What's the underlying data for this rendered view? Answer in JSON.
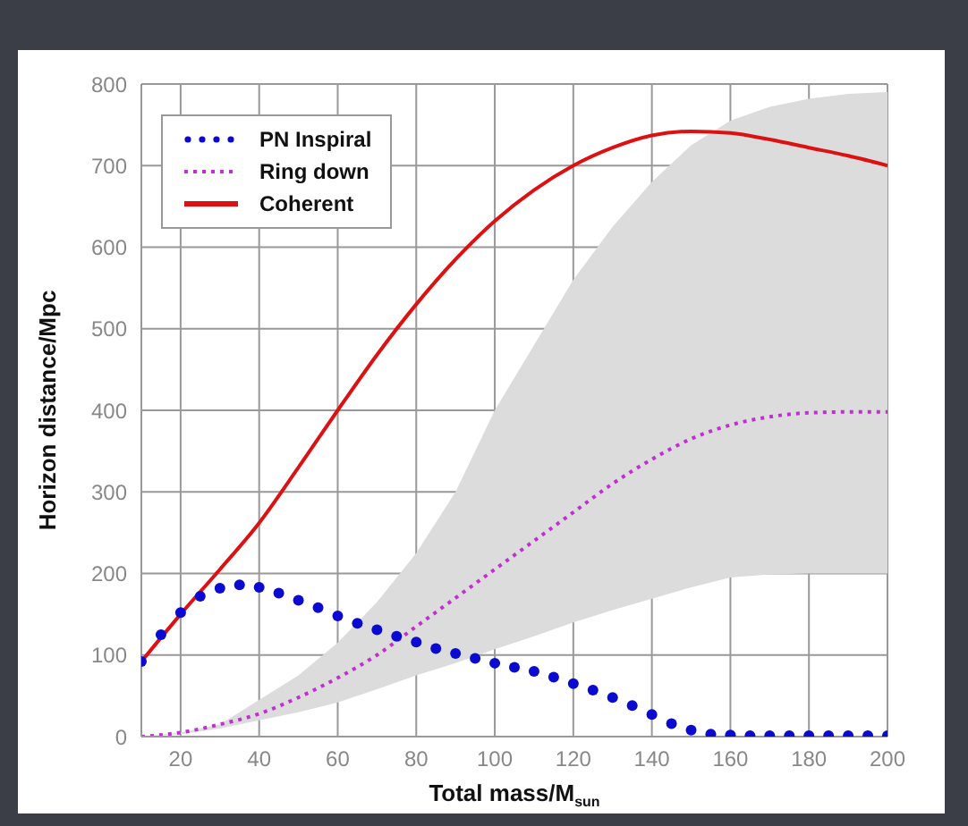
{
  "chart_data": {
    "type": "line",
    "xlabel": "Total mass/M$_{sun}$",
    "ylabel": "Horizon distance/Mpc",
    "xlim": [
      10,
      200
    ],
    "xticks": [
      20,
      40,
      60,
      80,
      100,
      120,
      140,
      160,
      180,
      200
    ],
    "ylim": [
      0,
      800
    ],
    "yticks": [
      0,
      100,
      200,
      300,
      400,
      500,
      600,
      700,
      800
    ],
    "grid": true,
    "legend": "top left",
    "series": [
      {
        "name": "PN Inspiral",
        "type": "scatter",
        "color": "#0a0ad0",
        "marker": "circle",
        "x": [
          10,
          15,
          20,
          25,
          30,
          35,
          40,
          45,
          50,
          55,
          60,
          65,
          70,
          75,
          80,
          85,
          90,
          95,
          100,
          105,
          110,
          115,
          120,
          125,
          130,
          135,
          140,
          145,
          150,
          155,
          160,
          165,
          170,
          175,
          180,
          185,
          190,
          195,
          200
        ],
        "values": [
          92,
          125,
          152,
          172,
          182,
          186,
          183,
          176,
          167,
          158,
          148,
          139,
          131,
          123,
          116,
          108,
          102,
          96,
          90,
          85,
          80,
          73,
          65,
          57,
          48,
          38,
          27,
          16,
          8,
          3,
          2,
          1,
          1,
          1,
          1,
          1,
          1,
          1,
          1
        ]
      },
      {
        "name": "Ring down",
        "color": "#c030d0",
        "line_style": "dotted",
        "x": [
          10,
          20,
          30,
          40,
          50,
          60,
          70,
          80,
          90,
          100,
          110,
          120,
          130,
          140,
          150,
          160,
          170,
          180,
          190,
          200
        ],
        "values": [
          0,
          5,
          15,
          28,
          48,
          72,
          100,
          135,
          170,
          205,
          240,
          275,
          310,
          340,
          365,
          382,
          392,
          397,
          398,
          398
        ],
        "lower": [
          0,
          3,
          10,
          20,
          30,
          42,
          58,
          75,
          90,
          107,
          123,
          140,
          155,
          169,
          183,
          195,
          199,
          200,
          200,
          200
        ],
        "upper": [
          0,
          5,
          15,
          45,
          75,
          115,
          165,
          225,
          300,
          400,
          480,
          560,
          625,
          680,
          725,
          755,
          772,
          782,
          788,
          790
        ]
      },
      {
        "name": "Coherent",
        "color": "#dd1111",
        "line_style": "solid",
        "x": [
          10,
          20,
          30,
          40,
          50,
          60,
          70,
          80,
          90,
          100,
          110,
          120,
          130,
          140,
          150,
          160,
          170,
          180,
          190,
          200
        ],
        "values": [
          92,
          150,
          205,
          262,
          330,
          400,
          468,
          530,
          585,
          632,
          670,
          700,
          722,
          737,
          742,
          740,
          732,
          722,
          712,
          700
        ]
      }
    ]
  }
}
